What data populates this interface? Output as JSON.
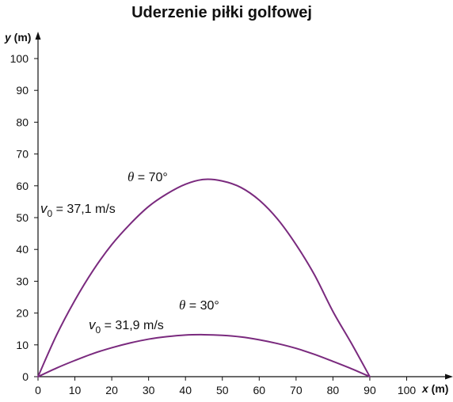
{
  "colors": {
    "curve": "#7a2a7e",
    "axis": "#111111",
    "text": "#111111"
  },
  "chart_data": {
    "type": "line",
    "title": "Uderzenie piłki golfowej",
    "xlabel_var": "x",
    "xlabel_unit": " (m)",
    "ylabel_var": "y",
    "ylabel_unit": " (m)",
    "xlim": [
      0,
      100
    ],
    "ylim": [
      0,
      100
    ],
    "xticks": [
      0,
      10,
      20,
      30,
      40,
      50,
      60,
      70,
      80,
      90,
      100
    ],
    "yticks": [
      0,
      10,
      20,
      30,
      40,
      50,
      60,
      70,
      80,
      90,
      100
    ],
    "grid": false,
    "legend": "none",
    "series": [
      {
        "x": [
          0,
          5,
          10,
          15,
          20,
          25,
          30,
          35,
          40,
          45,
          50,
          55,
          60,
          65,
          70,
          75,
          80,
          85,
          90
        ],
        "y": [
          0,
          13.0,
          24.0,
          33.5,
          41.5,
          48.0,
          53.5,
          57.5,
          60.5,
          62.0,
          61.5,
          59.5,
          55.5,
          49.5,
          41.5,
          32.0,
          20.5,
          10.5,
          0
        ],
        "annotations": {
          "angle": {
            "symbol": "θ",
            "text": " = 70°"
          },
          "speed": {
            "symbol": "v",
            "subscript": "0",
            "text": " = 37,1 m/s"
          }
        }
      },
      {
        "x": [
          0,
          5,
          10,
          15,
          20,
          25,
          30,
          35,
          40,
          45,
          50,
          55,
          60,
          65,
          70,
          75,
          80,
          85,
          90
        ],
        "y": [
          0,
          2.7,
          5.1,
          7.3,
          9.1,
          10.6,
          11.8,
          12.6,
          13.1,
          13.2,
          13.0,
          12.5,
          11.6,
          10.4,
          8.9,
          7.0,
          4.8,
          2.5,
          0
        ],
        "annotations": {
          "angle": {
            "symbol": "θ",
            "text": " = 30°"
          },
          "speed": {
            "symbol": "v",
            "subscript": "0",
            "text": " = 31,9 m/s"
          }
        }
      }
    ]
  }
}
